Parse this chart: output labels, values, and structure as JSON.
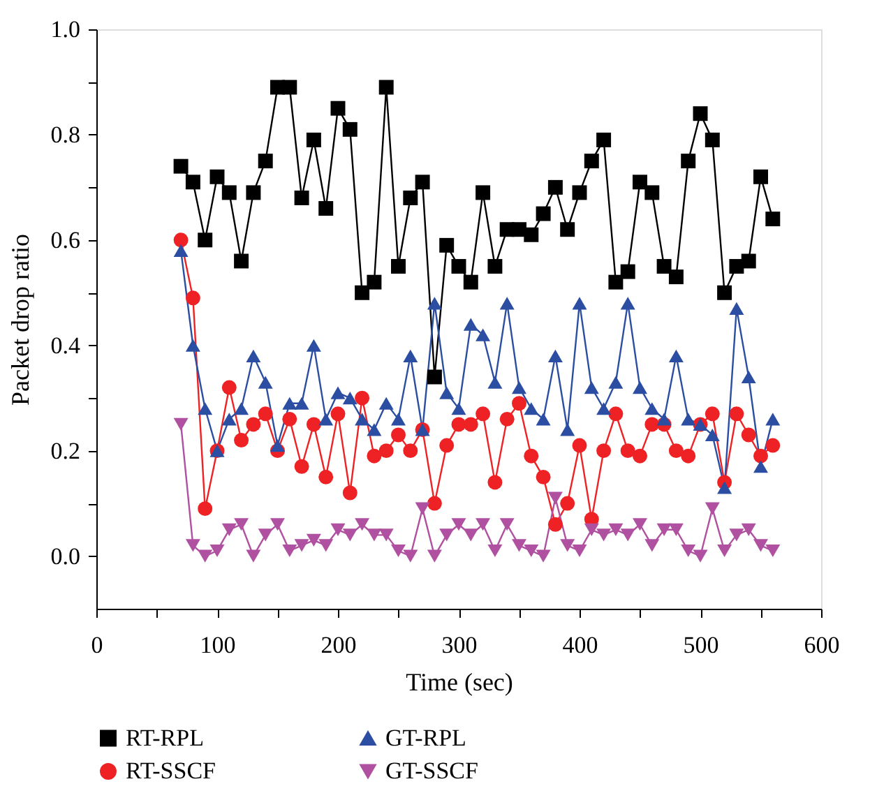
{
  "chart_data": {
    "type": "line",
    "xlabel": "Time (sec)",
    "ylabel": "Packet drop ratio",
    "x": [
      70,
      80,
      90,
      100,
      110,
      120,
      130,
      140,
      150,
      160,
      170,
      180,
      190,
      200,
      210,
      220,
      230,
      240,
      250,
      260,
      270,
      280,
      290,
      300,
      310,
      320,
      330,
      340,
      350,
      360,
      370,
      380,
      390,
      400,
      410,
      420,
      430,
      440,
      450,
      460,
      470,
      480,
      490,
      500,
      510,
      520,
      530,
      540,
      550,
      560
    ],
    "series": [
      {
        "name": "RT-RPL",
        "color": "#000000",
        "marker": "square",
        "values": [
          0.74,
          0.71,
          0.6,
          0.72,
          0.69,
          0.56,
          0.69,
          0.75,
          0.89,
          0.89,
          0.68,
          0.79,
          0.66,
          0.85,
          0.81,
          0.5,
          0.52,
          0.89,
          0.55,
          0.68,
          0.71,
          0.34,
          0.59,
          0.55,
          0.52,
          0.69,
          0.55,
          0.62,
          0.62,
          0.61,
          0.65,
          0.7,
          0.62,
          0.69,
          0.75,
          0.79,
          0.52,
          0.54,
          0.71,
          0.69,
          0.55,
          0.53,
          0.75,
          0.84,
          0.79,
          0.5,
          0.55,
          0.56,
          0.72,
          0.64
        ]
      },
      {
        "name": "RT-SSCF",
        "color": "#ee2224",
        "marker": "circle",
        "values": [
          0.6,
          0.49,
          0.09,
          0.2,
          0.32,
          0.22,
          0.25,
          0.27,
          0.2,
          0.26,
          0.17,
          0.25,
          0.15,
          0.27,
          0.12,
          0.3,
          0.19,
          0.2,
          0.23,
          0.2,
          0.24,
          0.1,
          0.21,
          0.25,
          0.25,
          0.27,
          0.14,
          0.26,
          0.29,
          0.19,
          0.15,
          0.06,
          0.1,
          0.21,
          0.07,
          0.2,
          0.27,
          0.2,
          0.19,
          0.25,
          0.25,
          0.2,
          0.19,
          0.25,
          0.27,
          0.14,
          0.27,
          0.23,
          0.19,
          0.21
        ]
      },
      {
        "name": "GT-RPL",
        "color": "#2b4ea2",
        "marker": "triangle",
        "values": [
          0.58,
          0.4,
          0.28,
          0.2,
          0.26,
          0.28,
          0.38,
          0.33,
          0.21,
          0.29,
          0.29,
          0.4,
          0.26,
          0.31,
          0.3,
          0.26,
          0.24,
          0.29,
          0.26,
          0.38,
          0.24,
          0.48,
          0.31,
          0.28,
          0.44,
          0.42,
          0.33,
          0.48,
          0.32,
          0.28,
          0.26,
          0.38,
          0.24,
          0.48,
          0.32,
          0.28,
          0.33,
          0.48,
          0.32,
          0.28,
          0.26,
          0.38,
          0.26,
          0.25,
          0.23,
          0.13,
          0.47,
          0.34,
          0.17,
          0.26
        ]
      },
      {
        "name": "GT-SSCF",
        "color": "#b050a0",
        "marker": "triangle-down",
        "values": [
          0.25,
          0.02,
          0.0,
          0.01,
          0.05,
          0.06,
          0.0,
          0.04,
          0.06,
          0.01,
          0.02,
          0.03,
          0.02,
          0.05,
          0.04,
          0.06,
          0.04,
          0.04,
          0.01,
          0.0,
          0.09,
          0.0,
          0.04,
          0.06,
          0.04,
          0.06,
          0.01,
          0.06,
          0.02,
          0.01,
          0.0,
          0.11,
          0.02,
          0.01,
          0.05,
          0.04,
          0.05,
          0.04,
          0.06,
          0.02,
          0.05,
          0.05,
          0.01,
          0.0,
          0.09,
          0.01,
          0.04,
          0.05,
          0.02,
          0.01
        ]
      }
    ],
    "xlim": [
      0,
      600
    ],
    "xticks": [
      0,
      {
        "value": 50,
        "label": null
      },
      100,
      {
        "value": 150,
        "label": null
      },
      200,
      {
        "value": 250,
        "label": null
      },
      300,
      {
        "value": 350,
        "label": null
      },
      400,
      {
        "value": 450,
        "label": null
      },
      500,
      {
        "value": 550,
        "label": null
      },
      600
    ],
    "ylim": [
      -0.1,
      1.0
    ],
    "yticks": [
      {
        "value": 0,
        "label": "0.0"
      },
      {
        "value": 0.1,
        "label": null
      },
      {
        "value": 0.2,
        "label": "0.2"
      },
      {
        "value": 0.3,
        "label": null
      },
      {
        "value": 0.4,
        "label": "0.4"
      },
      {
        "value": 0.5,
        "label": null
      },
      {
        "value": 0.6,
        "label": "0.6"
      },
      {
        "value": 0.7,
        "label": null
      },
      {
        "value": 0.8,
        "label": "0.8"
      },
      {
        "value": 0.9,
        "label": null
      },
      {
        "value": 1.0,
        "label": "1.0"
      }
    ],
    "grid": false,
    "legend": "bottom",
    "line_style": "solid"
  }
}
